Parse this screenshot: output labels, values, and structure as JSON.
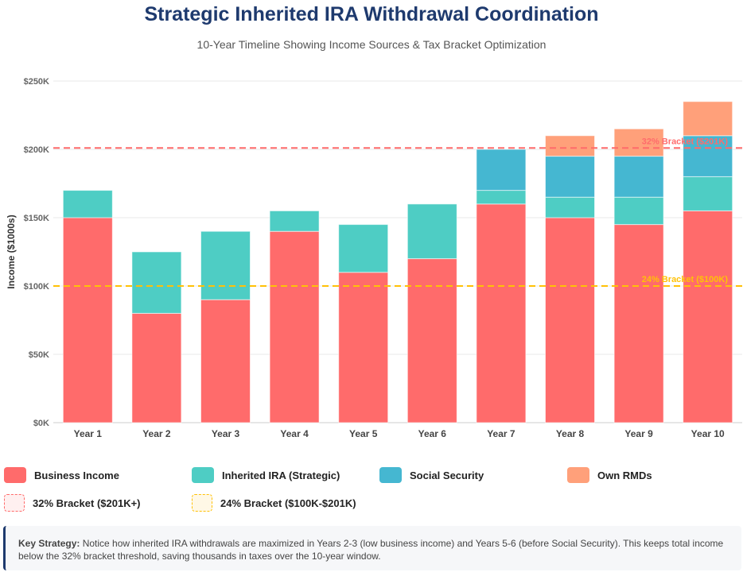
{
  "title": "Strategic Inherited IRA Withdrawal Coordination",
  "subtitle": "10-Year Timeline Showing Income Sources & Tax Bracket Optimization",
  "chart_data": {
    "type": "bar",
    "stacked": true,
    "categories": [
      "Year 1",
      "Year 2",
      "Year 3",
      "Year 4",
      "Year 5",
      "Year 6",
      "Year 7",
      "Year 8",
      "Year 9",
      "Year 10"
    ],
    "series": [
      {
        "name": "Business Income",
        "color": "#ff6b6b",
        "values": [
          150,
          80,
          90,
          140,
          110,
          120,
          160,
          150,
          145,
          155
        ]
      },
      {
        "name": "Inherited IRA (Strategic)",
        "color": "#4ecdc4",
        "values": [
          20,
          45,
          50,
          15,
          35,
          40,
          10,
          15,
          20,
          25
        ]
      },
      {
        "name": "Social Security",
        "color": "#45b7d1",
        "values": [
          0,
          0,
          0,
          0,
          0,
          0,
          30,
          30,
          30,
          30
        ]
      },
      {
        "name": "Own RMDs",
        "color": "#ffa07a",
        "values": [
          0,
          0,
          0,
          0,
          0,
          0,
          0,
          15,
          20,
          25
        ]
      }
    ],
    "ylabel": "Income ($1000s)",
    "ylim": [
      0,
      250
    ],
    "yticks": [
      "$0K",
      "$50K",
      "$100K",
      "$150K",
      "$200K",
      "$250K"
    ],
    "grid": true,
    "reference_lines": [
      {
        "label": "32% Bracket ($201K)",
        "value": 201,
        "color": "#ff6b6b"
      },
      {
        "label": "24% Bracket ($100K)",
        "value": 100,
        "color": "#ffc107"
      }
    ],
    "legend_position": "bottom"
  },
  "legend": {
    "items": [
      "Business Income",
      "Inherited IRA (Strategic)",
      "Social Security",
      "Own RMDs"
    ],
    "bracket32": "32% Bracket ($201K+)",
    "bracket24": "24% Bracket ($100K-$201K)"
  },
  "note": {
    "label": "Key Strategy:",
    "text": " Notice how inherited IRA withdrawals are maximized in Years 2-3 (low business income) and Years 5-6 (before Social Security). This keeps total income below the 32% bracket threshold, saving thousands in taxes over the 10-year window."
  }
}
